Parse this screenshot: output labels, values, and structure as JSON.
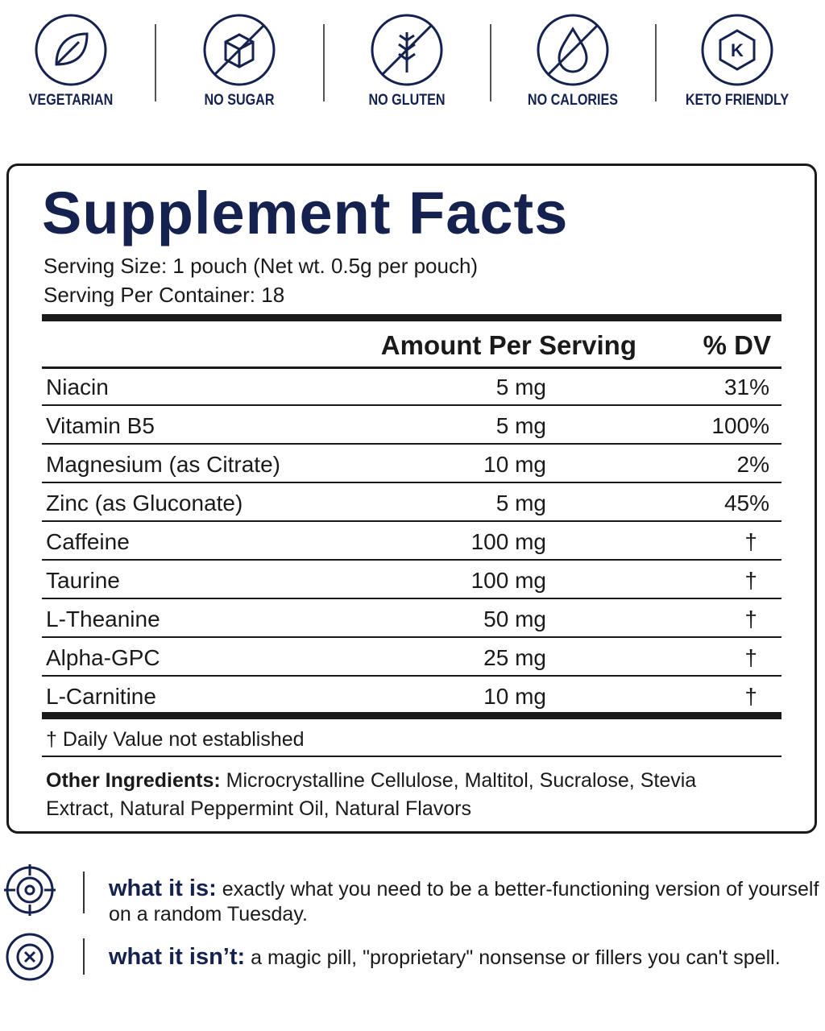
{
  "badges": [
    {
      "label": "VEGETARIAN"
    },
    {
      "label": "NO SUGAR"
    },
    {
      "label": "NO GLUTEN"
    },
    {
      "label": "NO CALORIES"
    },
    {
      "label": "KETO FRIENDLY",
      "icon_text": "K"
    }
  ],
  "facts": {
    "title": "Supplement Facts",
    "serving_size": "Serving Size: 1 pouch (Net wt. 0.5g per pouch)",
    "servings_per_container": "Serving Per Container: 18",
    "header": [
      "Amount Per Serving",
      "% DV"
    ],
    "rows": [
      [
        "Niacin",
        "5 mg",
        "31%"
      ],
      [
        "Vitamin B5",
        "5 mg",
        "100%"
      ],
      [
        "Magnesium (as Citrate)",
        "10 mg",
        "2%"
      ],
      [
        "Zinc (as Gluconate)",
        "5 mg",
        "45%"
      ],
      [
        "Caffeine",
        "100 mg",
        "†"
      ],
      [
        "Taurine",
        "100 mg",
        "†"
      ],
      [
        "L-Theanine",
        "50 mg",
        "†"
      ],
      [
        "Alpha-GPC",
        "25 mg",
        "†"
      ],
      [
        "L-Carnitine",
        "10 mg",
        "†"
      ]
    ],
    "footnote": "† Daily Value not established",
    "other_ingredients": {
      "label": "Other Ingredients:",
      "text": "Microcrystalline Cellulose, Maltitol, Sucralose, Stevia Extract, Natural Peppermint Oil, Natural Flavors"
    }
  },
  "notes": [
    {
      "label": "what it is:",
      "text": "exactly what you need to be a better-functioning version of yourself on a random Tuesday."
    },
    {
      "label": "what it isn’t:",
      "text": "a magic pill, \"proprietary\" nonsense or fillers you can't spell."
    }
  ]
}
